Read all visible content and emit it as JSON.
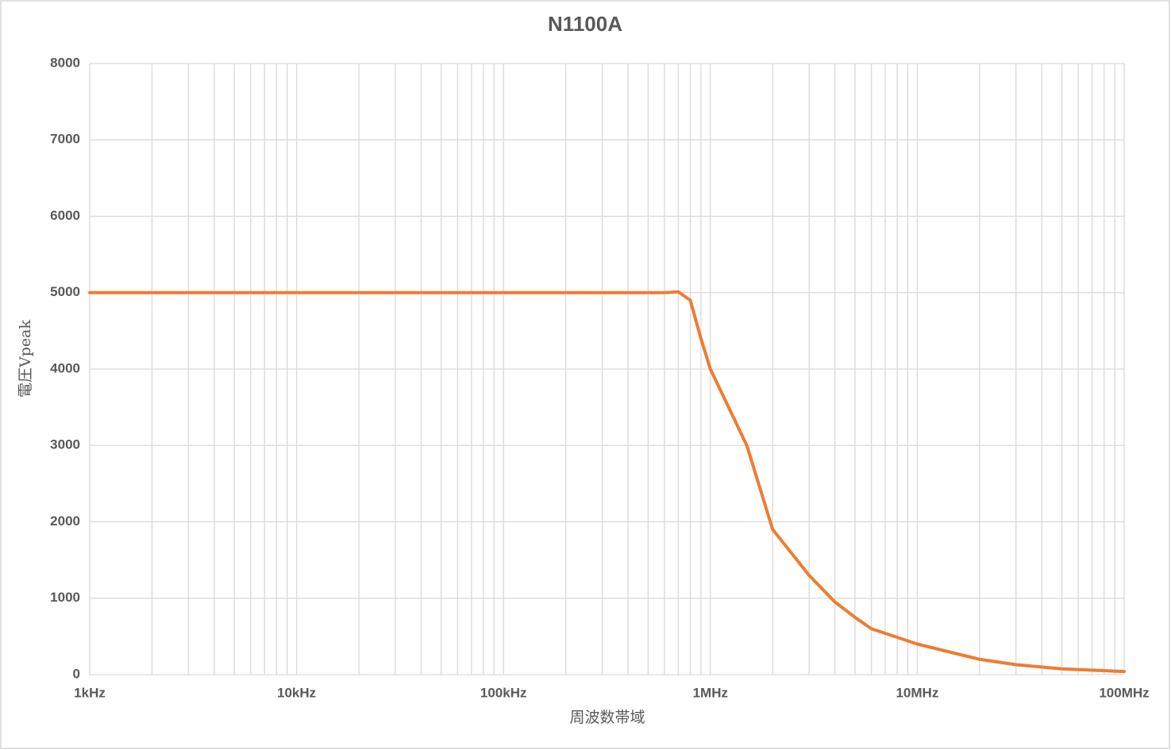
{
  "chart_data": {
    "type": "line",
    "title": "N1100A",
    "x_label": "周波数帯域",
    "y_label": "電圧Vpeak",
    "x": [
      1000,
      10000,
      100000,
      600000,
      700000,
      800000,
      900000,
      1000000,
      1500000,
      2000000,
      3000000,
      4000000,
      5000000,
      6000000,
      10000000,
      20000000,
      30000000,
      50000000,
      100000000
    ],
    "series": [
      {
        "name": "N1100A",
        "color": "#ed7d31",
        "values": [
          5000,
          5000,
          5000,
          5000,
          5010,
          4900,
          4400,
          4000,
          3000,
          1900,
          1300,
          950,
          750,
          600,
          400,
          200,
          130,
          75,
          40
        ]
      }
    ],
    "x_log": true,
    "xlim": [
      1000,
      100000000
    ],
    "xticks": [
      {
        "value": 1000,
        "label": "1kHz"
      },
      {
        "value": 10000,
        "label": "10kHz"
      },
      {
        "value": 100000,
        "label": "100kHz"
      },
      {
        "value": 1000000,
        "label": "1MHz"
      },
      {
        "value": 10000000,
        "label": "10MHz"
      },
      {
        "value": 100000000,
        "label": "100MHz"
      }
    ],
    "ylim": [
      0,
      8000
    ],
    "yticks": [
      0,
      1000,
      2000,
      3000,
      4000,
      5000,
      6000,
      7000,
      8000
    ],
    "grid": true
  }
}
